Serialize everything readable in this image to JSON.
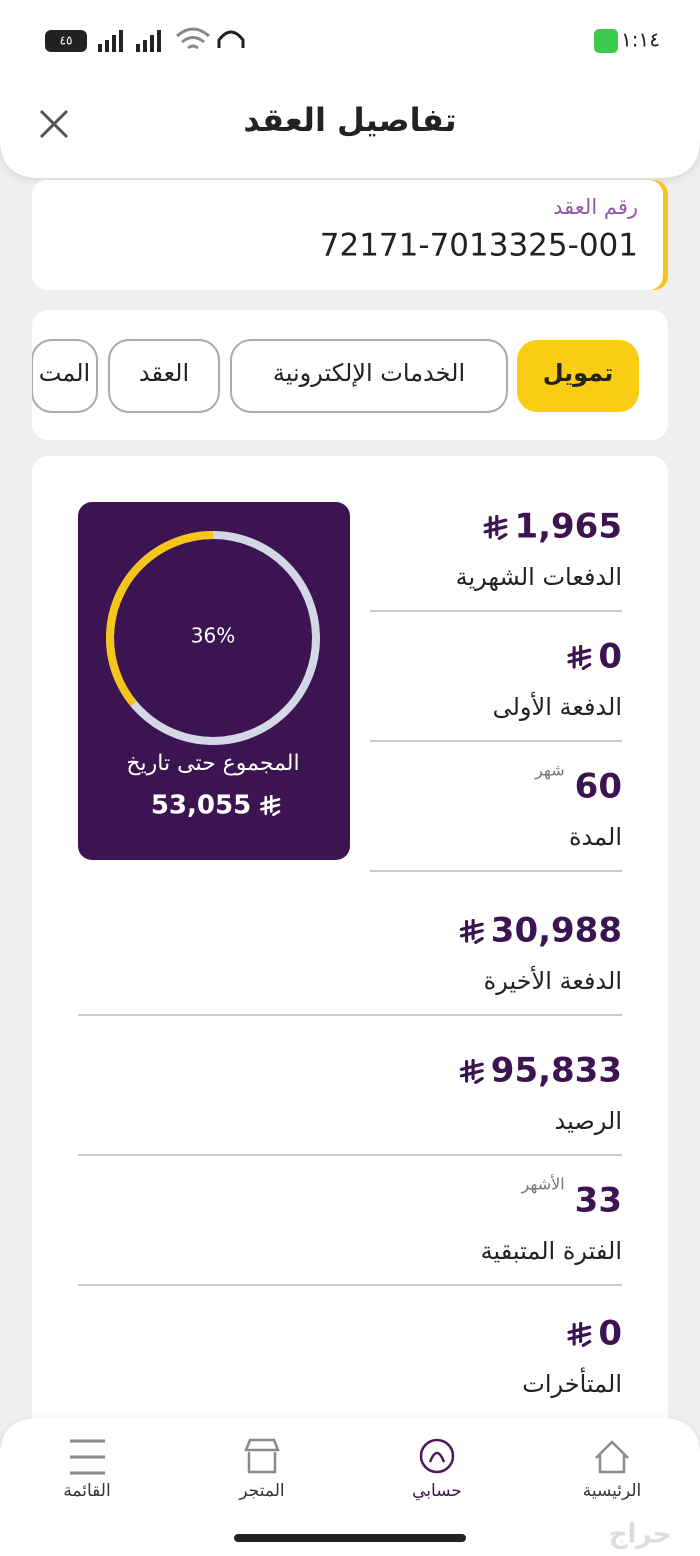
{
  "status_bar": {
    "time": "١:١٤",
    "battery": "٤٥"
  },
  "header": {
    "title": "تفاصيل العقد"
  },
  "contract": {
    "label": "رقم العقد",
    "number": "72171-7013325-001"
  },
  "tabs": [
    "تمويل",
    "الخدمات الإلكترونية",
    "العقد",
    "المت"
  ],
  "summary": {
    "progress": {
      "value": 36,
      "label": "36%"
    },
    "caption": "المجموع حتى تاريخ",
    "amount": "53,055"
  },
  "rows": [
    {
      "value": "1,965",
      "currency": true,
      "label": "الدفعات الشهرية"
    },
    {
      "value": "0",
      "currency": true,
      "label": "الدفعة الأولى"
    },
    {
      "value": "60",
      "unit": "شهر",
      "label": "المدة"
    },
    {
      "value": "30,988",
      "currency": true,
      "label": "الدفعة الأخيرة"
    },
    {
      "value": "95,833",
      "currency": true,
      "label": "الرصيد"
    },
    {
      "value": "33",
      "unit": "الأشهر",
      "label": "الفترة المتبقية"
    },
    {
      "value": "0",
      "currency": true,
      "label": "المتأخرات"
    }
  ],
  "nav": [
    "الرئيسية",
    "حسابي",
    "المتجر",
    "القائمة"
  ],
  "watermark": "حراج"
}
